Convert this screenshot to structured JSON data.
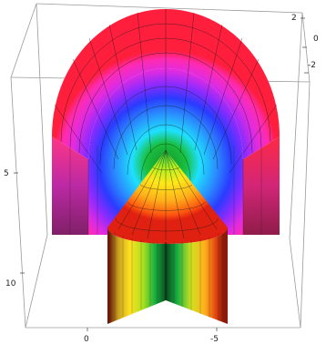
{
  "figure": {
    "description_free": true,
    "box": {
      "edge_color": "#9a9a9a"
    },
    "ticks": {
      "right_top": "2",
      "right_mid": "0",
      "right_bot": "-2",
      "left_upper": "5",
      "left_lower": "10",
      "bottom_left": "0",
      "bottom_right": "-5"
    },
    "colors": {
      "red": "#ff1e1e",
      "magenta": "#ff2bf0",
      "violet": "#8a2bff",
      "blue": "#2a5bff",
      "cyan": "#1fe0ff",
      "green": "#18c040",
      "yellow": "#ffe81a",
      "orange": "#ff8c1a",
      "dark_red": "#8a1a0a"
    }
  }
}
